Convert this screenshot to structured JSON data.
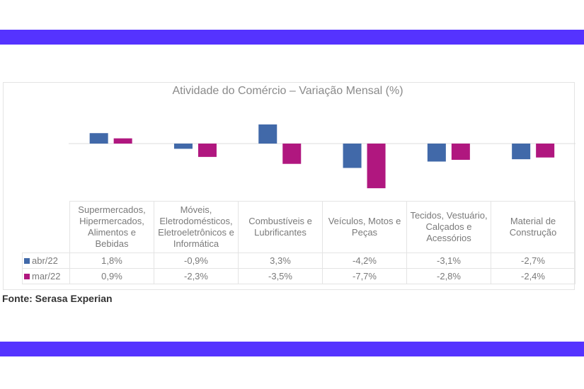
{
  "colors": {
    "band": "#5533ff",
    "abr": "#4169a9",
    "mar": "#b0177f"
  },
  "chart_data": {
    "type": "bar",
    "title": "Atividade do Comércio – Variação Mensal (%)",
    "categories": [
      "Supermercados, Hipermercados, Alimentos e Bebidas",
      "Móveis, Eletrodomésticos, Eletroeletrônicos e Informática",
      "Combustíveis e Lubrificantes",
      "Veículos, Motos e Peças",
      "Tecidos, Vestuário, Calçados e Acessórios",
      "Material de Construção"
    ],
    "series": [
      {
        "name": "abr/22",
        "values": [
          1.8,
          -0.9,
          3.3,
          -4.2,
          -3.1,
          -2.7
        ],
        "labels": [
          "1,8%",
          "-0,9%",
          "3,3%",
          "-4,2%",
          "-3,1%",
          "-2,7%"
        ]
      },
      {
        "name": "mar/22",
        "values": [
          0.9,
          -2.3,
          -3.5,
          -7.7,
          -2.8,
          -2.4
        ],
        "labels": [
          "0,9%",
          "-2,3%",
          "-3,5%",
          "-7,7%",
          "-2,8%",
          "-2,4%"
        ]
      }
    ],
    "legend": "data-table"
  },
  "source": "Fonte: Serasa Experian"
}
